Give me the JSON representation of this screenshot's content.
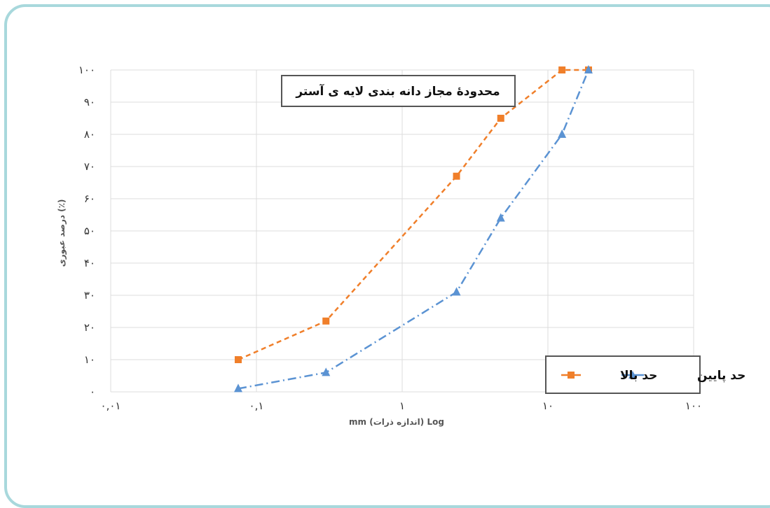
{
  "chart_data": {
    "type": "line",
    "title": "محدودهٔ مجاز دانه بندی لایه ی آستر",
    "xlabel": "mm (اندازه ذرات) Log",
    "ylabel": "درصد عبوری (٪)",
    "x_scale": "log",
    "xlim": [
      0.01,
      100
    ],
    "ylim": [
      0,
      100
    ],
    "x_tick_labels": [
      "۰,۰۱",
      "۰,۱",
      "۱",
      "۱۰",
      "۱۰۰"
    ],
    "y_tick_labels": [
      "۰",
      "۱۰",
      "۲۰",
      "۳۰",
      "۴۰",
      "۵۰",
      "۶۰",
      "۷۰",
      "۸۰",
      "۹۰",
      "۱۰۰"
    ],
    "grid": true,
    "legend_position": "bottom-right",
    "series": [
      {
        "name": "حد بالا",
        "color": "#f07f2a",
        "marker": "square",
        "dash": "dashed",
        "x": [
          0.075,
          0.3,
          2.36,
          4.75,
          12.5,
          19
        ],
        "y": [
          10,
          22,
          67,
          85,
          100,
          100
        ]
      },
      {
        "name": "حد پایین",
        "color": "#5b93d3",
        "marker": "triangle",
        "dash": "dash-dot",
        "x": [
          0.075,
          0.3,
          2.36,
          4.75,
          12.5,
          19
        ],
        "y": [
          1,
          6,
          31,
          54,
          80,
          100
        ]
      }
    ]
  }
}
